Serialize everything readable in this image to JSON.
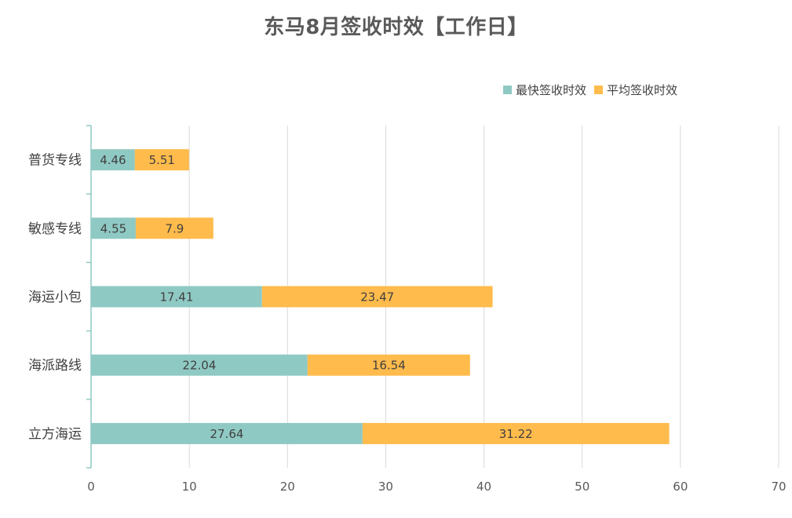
{
  "chart_data": {
    "type": "bar",
    "orientation": "horizontal",
    "stacked": true,
    "title": "东马8月签收时效【工作日】",
    "categories": [
      "普货专线",
      "敏感专线",
      "海运小包",
      "海派路线",
      "立方海运"
    ],
    "series": [
      {
        "name": "最快签收时效",
        "color": "#8fc9c3",
        "values": [
          4.46,
          4.55,
          17.41,
          22.04,
          27.64
        ],
        "labels": [
          "4.46",
          "4.55",
          "17.41",
          "22.04",
          "27.64"
        ]
      },
      {
        "name": "平均签收时效",
        "color": "#ffbb4c",
        "values": [
          5.51,
          7.9,
          23.47,
          16.54,
          31.22
        ],
        "labels": [
          "5.51",
          "7.9",
          "23.47",
          "16.54",
          "31.22"
        ]
      }
    ],
    "xlim": [
      0,
      70
    ],
    "xticks": [
      "0",
      "10",
      "20",
      "30",
      "40",
      "50",
      "60",
      "70"
    ],
    "grid": true,
    "legend_position": "top-right"
  },
  "colors": {
    "grid": "#d9d9d9",
    "axis": "#8fc9c3",
    "title": "#595959"
  }
}
